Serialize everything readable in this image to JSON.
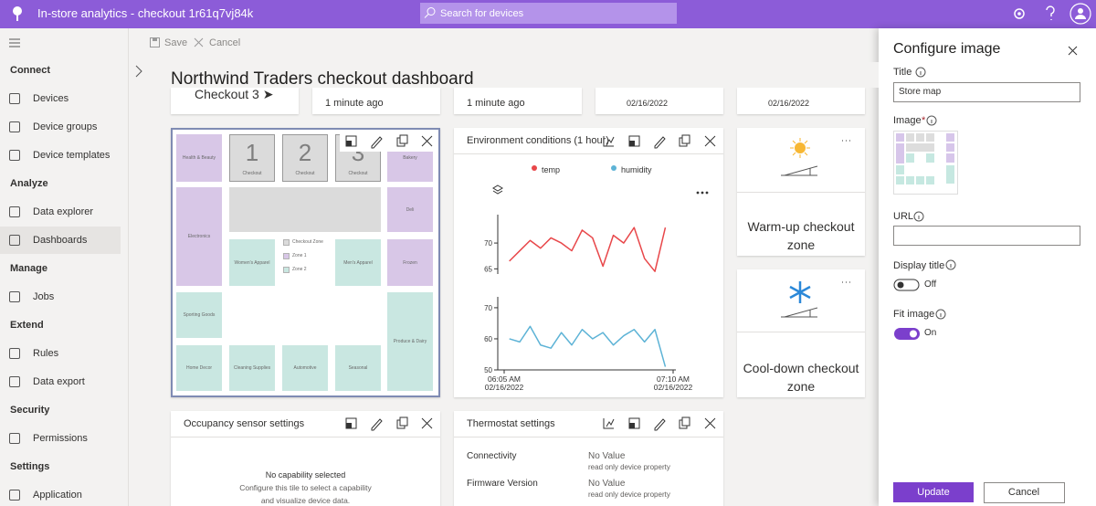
{
  "header": {
    "title": "In-store analytics - checkout 1r61q7vj84k",
    "search_placeholder": "Search for devices"
  },
  "nav": {
    "sections": [
      {
        "name": "Connect",
        "items": [
          "Devices",
          "Device groups",
          "Device templates"
        ]
      },
      {
        "name": "Analyze",
        "items": [
          "Data explorer",
          "Dashboards"
        ]
      },
      {
        "name": "Manage",
        "items": [
          "Jobs"
        ]
      },
      {
        "name": "Extend",
        "items": [
          "Rules",
          "Data export"
        ]
      },
      {
        "name": "Security",
        "items": [
          "Permissions"
        ]
      },
      {
        "name": "Settings",
        "items": [
          "Application"
        ]
      }
    ]
  },
  "toolbar": {
    "save": "Save",
    "cancel": "Cancel"
  },
  "dashboard": {
    "title": "Northwind Traders checkout dashboard",
    "top_row": [
      "Checkout 3 ➤",
      "1 minute ago",
      "1 minute ago",
      "02/16/2022",
      "02/16/2022"
    ],
    "store_map": {
      "zones": [
        {
          "label": "Health & Beauty"
        },
        {
          "label": "Checkout",
          "number": "1"
        },
        {
          "label": "Checkout",
          "number": "2"
        },
        {
          "label": "Checkout",
          "number": "3"
        },
        {
          "label": "Bakery"
        },
        {
          "label": "Electronics"
        },
        {
          "label": "Deli"
        },
        {
          "label": "Women's Apparel"
        },
        {
          "label": "Men's Apparel"
        },
        {
          "label": "Frozen"
        },
        {
          "label": "Sporting Goods"
        },
        {
          "label": "Produce & Dairy"
        },
        {
          "label": "Home Decor"
        },
        {
          "label": "Cleaning Supplies"
        },
        {
          "label": "Automotive"
        },
        {
          "label": "Seasonal"
        }
      ],
      "legend": [
        "Checkout Zone",
        "Zone 1",
        "Zone 2"
      ]
    },
    "environment": {
      "title": "Environment conditions (1 hour)",
      "chart": {
        "type": "line",
        "x": [
          2,
          6,
          10,
          14,
          18,
          22,
          26,
          30,
          34,
          38,
          42,
          46,
          50,
          54,
          58,
          62
        ],
        "xlim": [
          0,
          65
        ],
        "xticks": [
          {
            "value": 0,
            "label": "06:05 AM"
          },
          {
            "value": 65,
            "label": "07:10 AM"
          }
        ],
        "xtick_dates": [
          "02/16/2022",
          "02/16/2022"
        ],
        "series": [
          {
            "name": "temp",
            "color": "#e8474a",
            "ylim": [
              64,
              75.5
            ],
            "yticks": [
              65,
              70
            ],
            "values": [
              66.5,
              68.5,
              70.5,
              69,
              71,
              70,
              68.5,
              72.5,
              71,
              65.5,
              71.5,
              70,
              73,
              67,
              64.5,
              73
            ]
          },
          {
            "name": "humidity",
            "color": "#5db3d6",
            "ylim": [
              50,
              73.5
            ],
            "yticks": [
              50,
              60,
              70
            ],
            "values": [
              60,
              59,
              64,
              58,
              57,
              62,
              58,
              63,
              60,
              62,
              58,
              61,
              63,
              59,
              63,
              51
            ]
          }
        ]
      }
    },
    "warmup": "Warm-up checkout zone",
    "cooldown": "Cool-down checkout zone",
    "occupancy": {
      "title": "Occupancy sensor settings",
      "message": "No capability selected",
      "hint": "Configure this tile to select a capability and visualize device data."
    },
    "thermostat": {
      "title": "Thermostat settings",
      "rows": [
        {
          "label": "Connectivity",
          "value": "No Value",
          "note": "read only device property"
        },
        {
          "label": "Firmware Version",
          "value": "No Value",
          "note": "read only device property"
        }
      ]
    }
  },
  "panel": {
    "title": "Configure image",
    "title_label": "Title",
    "title_value": "Store map",
    "image_label": "Image",
    "required": "*",
    "url_label": "URL",
    "display_title_label": "Display title",
    "display_title_state": "Off",
    "fit_image_label": "Fit image",
    "fit_image_state": "On",
    "update": "Update",
    "cancel": "Cancel"
  }
}
